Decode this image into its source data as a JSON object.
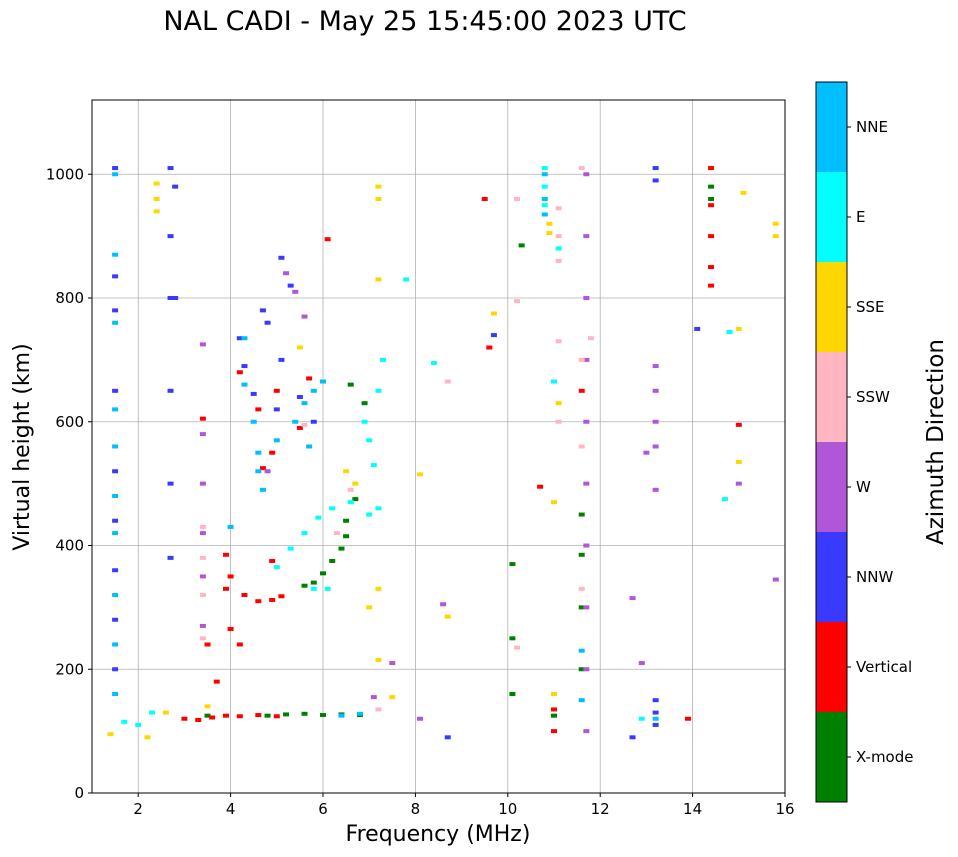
{
  "chart_data": {
    "type": "scatter",
    "title": "NAL CADI - May 25 15:45:00 2023 UTC",
    "xlabel": "Frequency (MHz)",
    "ylabel": "Virtual height (km)",
    "xlim": [
      1,
      16
    ],
    "ylim": [
      0,
      1120
    ],
    "x_ticks": [
      2,
      4,
      6,
      8,
      10,
      12,
      14,
      16
    ],
    "y_ticks": [
      0,
      200,
      400,
      600,
      800,
      1000
    ],
    "grid": true,
    "colorbar": {
      "title": "Azimuth Direction",
      "categories": [
        {
          "name": "X-mode",
          "color": "#008000"
        },
        {
          "name": "Vertical",
          "color": "#ff0000"
        },
        {
          "name": "NNW",
          "color": "#3a3aff"
        },
        {
          "name": "W",
          "color": "#b057d8"
        },
        {
          "name": "SSW",
          "color": "#ffb6c1"
        },
        {
          "name": "SSE",
          "color": "#ffd700"
        },
        {
          "name": "E",
          "color": "#00ffff"
        },
        {
          "name": "NNE",
          "color": "#00bfff"
        }
      ]
    },
    "series": [
      {
        "name": "X-mode",
        "points": [
          [
            3.5,
            125
          ],
          [
            4.8,
            125
          ],
          [
            5.2,
            127
          ],
          [
            5.6,
            128
          ],
          [
            6.0,
            126
          ],
          [
            6.4,
            127
          ],
          [
            6.8,
            126
          ],
          [
            5.6,
            335
          ],
          [
            5.8,
            340
          ],
          [
            6.0,
            355
          ],
          [
            6.2,
            375
          ],
          [
            6.4,
            395
          ],
          [
            6.5,
            415
          ],
          [
            6.5,
            440
          ],
          [
            6.7,
            475
          ],
          [
            6.6,
            660
          ],
          [
            6.9,
            630
          ],
          [
            10.1,
            370
          ],
          [
            10.1,
            250
          ],
          [
            10.1,
            160
          ],
          [
            10.3,
            885
          ],
          [
            11.0,
            125
          ],
          [
            11.6,
            385
          ],
          [
            11.6,
            300
          ],
          [
            11.6,
            200
          ],
          [
            11.6,
            450
          ],
          [
            14.4,
            980
          ],
          [
            14.4,
            960
          ]
        ]
      },
      {
        "name": "Vertical",
        "points": [
          [
            3.0,
            120
          ],
          [
            3.3,
            118
          ],
          [
            3.6,
            122
          ],
          [
            3.9,
            125
          ],
          [
            4.2,
            124
          ],
          [
            4.6,
            126
          ],
          [
            5.0,
            124
          ],
          [
            3.7,
            180
          ],
          [
            3.5,
            240
          ],
          [
            4.0,
            265
          ],
          [
            4.2,
            240
          ],
          [
            3.9,
            385
          ],
          [
            4.0,
            350
          ],
          [
            3.9,
            330
          ],
          [
            4.3,
            320
          ],
          [
            4.6,
            310
          ],
          [
            4.9,
            312
          ],
          [
            5.1,
            318
          ],
          [
            4.9,
            375
          ],
          [
            3.4,
            605
          ],
          [
            4.6,
            620
          ],
          [
            5.5,
            590
          ],
          [
            4.7,
            525
          ],
          [
            4.9,
            550
          ],
          [
            6.1,
            895
          ],
          [
            9.6,
            720
          ],
          [
            9.5,
            960
          ],
          [
            10.7,
            495
          ],
          [
            11.0,
            135
          ],
          [
            11.0,
            100
          ],
          [
            11.6,
            650
          ],
          [
            13.9,
            120
          ],
          [
            14.4,
            1010
          ],
          [
            14.4,
            950
          ],
          [
            14.4,
            900
          ],
          [
            14.4,
            850
          ],
          [
            14.4,
            820
          ],
          [
            15.0,
            595
          ],
          [
            4.2,
            680
          ],
          [
            5.0,
            650
          ],
          [
            5.7,
            670
          ]
        ]
      },
      {
        "name": "NNW",
        "points": [
          [
            1.5,
            1010
          ],
          [
            1.5,
            835
          ],
          [
            1.5,
            780
          ],
          [
            1.5,
            650
          ],
          [
            1.5,
            520
          ],
          [
            1.5,
            440
          ],
          [
            1.5,
            360
          ],
          [
            1.5,
            280
          ],
          [
            1.5,
            200
          ],
          [
            2.7,
            1010
          ],
          [
            2.7,
            900
          ],
          [
            2.7,
            800
          ],
          [
            2.7,
            650
          ],
          [
            2.7,
            500
          ],
          [
            2.7,
            380
          ],
          [
            2.8,
            980
          ],
          [
            2.8,
            800
          ],
          [
            4.2,
            735
          ],
          [
            4.3,
            690
          ],
          [
            4.7,
            780
          ],
          [
            4.8,
            760
          ],
          [
            5.1,
            865
          ],
          [
            5.3,
            820
          ],
          [
            5.1,
            700
          ],
          [
            4.5,
            645
          ],
          [
            5.0,
            620
          ],
          [
            5.5,
            640
          ],
          [
            5.8,
            600
          ],
          [
            8.7,
            90
          ],
          [
            12.7,
            90
          ],
          [
            13.2,
            1010
          ],
          [
            13.2,
            990
          ],
          [
            13.2,
            150
          ],
          [
            13.2,
            130
          ],
          [
            13.2,
            110
          ],
          [
            14.1,
            750
          ],
          [
            9.7,
            740
          ]
        ]
      },
      {
        "name": "W",
        "points": [
          [
            3.4,
            725
          ],
          [
            3.4,
            580
          ],
          [
            3.4,
            500
          ],
          [
            3.4,
            420
          ],
          [
            3.4,
            350
          ],
          [
            3.4,
            270
          ],
          [
            5.2,
            840
          ],
          [
            5.4,
            810
          ],
          [
            5.6,
            770
          ],
          [
            4.8,
            520
          ],
          [
            11.7,
            1000
          ],
          [
            11.7,
            900
          ],
          [
            11.7,
            800
          ],
          [
            11.7,
            700
          ],
          [
            11.7,
            600
          ],
          [
            11.7,
            500
          ],
          [
            11.7,
            400
          ],
          [
            11.7,
            300
          ],
          [
            11.7,
            200
          ],
          [
            11.7,
            100
          ],
          [
            13.2,
            690
          ],
          [
            13.2,
            650
          ],
          [
            13.2,
            600
          ],
          [
            13.2,
            560
          ],
          [
            13.2,
            490
          ],
          [
            13.0,
            550
          ],
          [
            12.7,
            315
          ],
          [
            12.9,
            210
          ],
          [
            8.6,
            305
          ],
          [
            15.8,
            345
          ],
          [
            15.0,
            500
          ],
          [
            8.1,
            120
          ],
          [
            7.5,
            210
          ],
          [
            7.1,
            155
          ]
        ]
      },
      {
        "name": "SSW",
        "points": [
          [
            3.4,
            430
          ],
          [
            3.4,
            380
          ],
          [
            3.4,
            320
          ],
          [
            3.4,
            250
          ],
          [
            5.6,
            595
          ],
          [
            6.3,
            420
          ],
          [
            6.6,
            490
          ],
          [
            7.2,
            135
          ],
          [
            8.7,
            665
          ],
          [
            10.2,
            960
          ],
          [
            10.2,
            795
          ],
          [
            10.2,
            235
          ],
          [
            11.1,
            945
          ],
          [
            11.1,
            900
          ],
          [
            11.1,
            860
          ],
          [
            11.1,
            730
          ],
          [
            11.1,
            600
          ],
          [
            11.6,
            1010
          ],
          [
            11.6,
            700
          ],
          [
            11.6,
            560
          ],
          [
            11.6,
            330
          ],
          [
            11.8,
            735
          ]
        ]
      },
      {
        "name": "SSE",
        "points": [
          [
            1.4,
            95
          ],
          [
            2.2,
            90
          ],
          [
            2.4,
            985
          ],
          [
            2.4,
            960
          ],
          [
            2.4,
            940
          ],
          [
            2.6,
            130
          ],
          [
            3.5,
            140
          ],
          [
            6.5,
            520
          ],
          [
            6.7,
            500
          ],
          [
            7.2,
            980
          ],
          [
            7.2,
            960
          ],
          [
            7.2,
            830
          ],
          [
            7.0,
            300
          ],
          [
            7.2,
            215
          ],
          [
            7.2,
            330
          ],
          [
            8.1,
            515
          ],
          [
            8.7,
            285
          ],
          [
            9.7,
            775
          ],
          [
            10.9,
            920
          ],
          [
            10.9,
            905
          ],
          [
            11.0,
            160
          ],
          [
            11.0,
            470
          ],
          [
            11.1,
            630
          ],
          [
            15.1,
            970
          ],
          [
            15.0,
            750
          ],
          [
            15.0,
            535
          ],
          [
            15.8,
            920
          ],
          [
            15.8,
            900
          ],
          [
            7.5,
            155
          ],
          [
            5.5,
            720
          ]
        ]
      },
      {
        "name": "E",
        "points": [
          [
            1.7,
            115
          ],
          [
            2.0,
            110
          ],
          [
            2.3,
            130
          ],
          [
            5.0,
            365
          ],
          [
            5.3,
            395
          ],
          [
            5.6,
            420
          ],
          [
            5.9,
            445
          ],
          [
            6.2,
            460
          ],
          [
            6.6,
            470
          ],
          [
            7.0,
            450
          ],
          [
            7.2,
            460
          ],
          [
            7.1,
            530
          ],
          [
            7.0,
            570
          ],
          [
            6.9,
            600
          ],
          [
            7.2,
            650
          ],
          [
            7.3,
            700
          ],
          [
            5.8,
            330
          ],
          [
            6.1,
            330
          ],
          [
            10.8,
            1010
          ],
          [
            10.8,
            980
          ],
          [
            10.8,
            950
          ],
          [
            11.1,
            880
          ],
          [
            11.0,
            665
          ],
          [
            7.8,
            830
          ],
          [
            8.4,
            695
          ],
          [
            14.8,
            745
          ],
          [
            14.7,
            475
          ],
          [
            12.9,
            120
          ]
        ]
      },
      {
        "name": "NNE",
        "points": [
          [
            1.5,
            1000
          ],
          [
            1.5,
            870
          ],
          [
            1.5,
            760
          ],
          [
            1.5,
            620
          ],
          [
            1.5,
            560
          ],
          [
            1.5,
            480
          ],
          [
            1.5,
            420
          ],
          [
            1.5,
            320
          ],
          [
            1.5,
            240
          ],
          [
            1.5,
            160
          ],
          [
            4.3,
            735
          ],
          [
            4.3,
            660
          ],
          [
            4.5,
            600
          ],
          [
            4.6,
            550
          ],
          [
            4.7,
            490
          ],
          [
            4.6,
            520
          ],
          [
            5.0,
            570
          ],
          [
            5.4,
            600
          ],
          [
            5.6,
            630
          ],
          [
            5.8,
            650
          ],
          [
            6.0,
            665
          ],
          [
            4.0,
            430
          ],
          [
            6.4,
            125
          ],
          [
            6.8,
            128
          ],
          [
            5.7,
            560
          ],
          [
            10.8,
            1000
          ],
          [
            10.8,
            960
          ],
          [
            10.8,
            935
          ],
          [
            11.6,
            230
          ],
          [
            11.6,
            150
          ],
          [
            13.2,
            120
          ]
        ]
      }
    ]
  }
}
